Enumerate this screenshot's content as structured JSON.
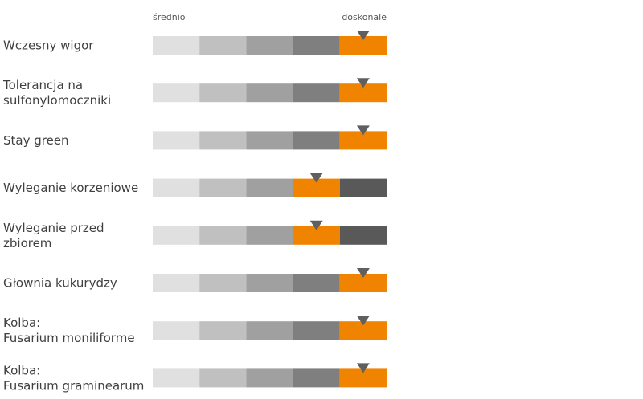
{
  "chart_data": {
    "type": "bar",
    "scale": {
      "min_label": "średnio",
      "max_label": "doskonale",
      "levels": 5
    },
    "segment_colors": [
      "#e0e0e0",
      "#c0c0c0",
      "#a0a0a0",
      "#7f7f7f",
      "#595959"
    ],
    "highlight_color": "#f08400",
    "marker_color": "#5f5f5f",
    "categories": [
      {
        "lines": [
          "Wczesny wigor"
        ],
        "value": 5
      },
      {
        "lines": [
          "Tolerancja na",
          "sulfonylomoczniki"
        ],
        "value": 5
      },
      {
        "lines": [
          "Stay green"
        ],
        "value": 5
      },
      {
        "lines": [
          "Wyleganie korzeniowe"
        ],
        "value": 4
      },
      {
        "lines": [
          "Wyleganie przed",
          "zbiorem"
        ],
        "value": 4
      },
      {
        "lines": [
          "Głownia kukurydzy"
        ],
        "value": 5
      },
      {
        "lines": [
          "Kolba:",
          "Fusarium moniliforme"
        ],
        "value": 5
      },
      {
        "lines": [
          "Kolba:",
          "Fusarium graminearum"
        ],
        "value": 5
      }
    ]
  }
}
